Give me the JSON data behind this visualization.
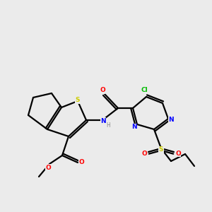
{
  "background_color": "#ebebeb",
  "atom_colors": {
    "C": "#000000",
    "H": "#888888",
    "N": "#0000ff",
    "O": "#ff0000",
    "S": "#cccc00",
    "Cl": "#00bb00"
  },
  "figsize": [
    3.0,
    3.0
  ],
  "dpi": 100
}
